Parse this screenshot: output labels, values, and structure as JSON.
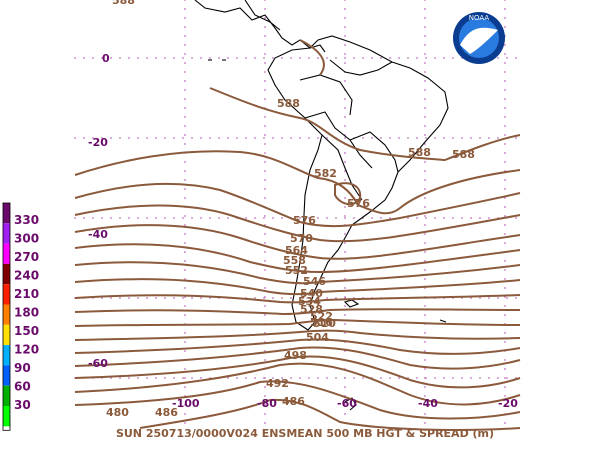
{
  "map": {
    "footer": "SUN 250713/0000V024  ENSMEAN 500 MB HGT & SPREAD (m)",
    "logo_text": "NOAA",
    "colors": {
      "contour": "#8B5A3C",
      "coast": "#000000",
      "grid_dots": "#c070c0",
      "axis_labels": "#6a0a6a"
    },
    "lat_labels": [
      "0",
      "-20",
      "-40",
      "-60"
    ],
    "lon_labels": [
      "-100",
      "-80",
      "-60",
      "-40",
      "-20"
    ],
    "contour_labels": [
      "588",
      "588",
      "588",
      "588",
      "582",
      "576",
      "576",
      "570",
      "564",
      "558",
      "552",
      "546",
      "540",
      "534",
      "528",
      "522",
      "516",
      "510",
      "504",
      "498",
      "492",
      "486",
      "486",
      "480"
    ],
    "spread_colorbar": {
      "labels": [
        "330",
        "300",
        "270",
        "240",
        "210",
        "180",
        "150",
        "120",
        "90",
        "60",
        "30"
      ],
      "colors": [
        "#6a0a6a",
        "#a020f0",
        "#ff00ff",
        "#800000",
        "#ff2000",
        "#ff8000",
        "#ffe000",
        "#00b0ff",
        "#0060ff",
        "#00b000",
        "#00ff00"
      ]
    }
  }
}
